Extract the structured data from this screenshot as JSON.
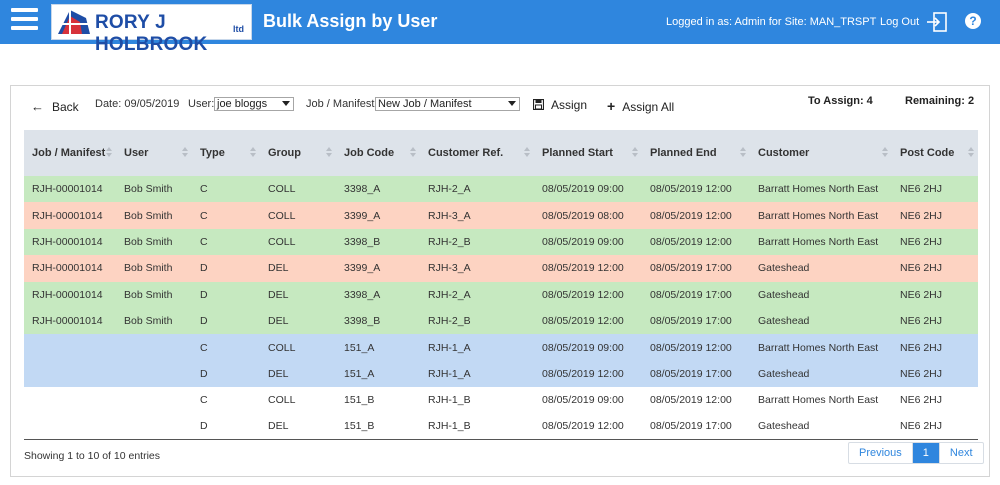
{
  "header": {
    "app_title": "Bulk Assign by User",
    "logo_text": "RORY J HOLBROOK",
    "logo_suffix": "ltd",
    "logged_in": "Logged in as: Admin for Site: MAN_TRSPT",
    "logout_label": "Log Out",
    "help_label": "?"
  },
  "toolbar": {
    "back_label": "Back",
    "date_label": "Date: 09/05/2019",
    "user_label": "User:",
    "user_value": "joe bloggs",
    "job_label": "Job / Manifest:",
    "job_value": "New Job / Manifest",
    "assign_label": "Assign",
    "assign_all_label": "Assign All",
    "to_assign": "To Assign: 4",
    "remaining": "Remaining: 2"
  },
  "table": {
    "columns": [
      "Job / Manifest",
      "User",
      "Type",
      "Group",
      "Job Code",
      "Customer Ref.",
      "Planned Start",
      "Planned End",
      "Customer",
      "Post Code"
    ],
    "rows": [
      {
        "color": "green",
        "cells": [
          "RJH-00001014",
          "Bob Smith",
          "C",
          "COLL",
          "3398_A",
          "RJH-2_A",
          "08/05/2019 09:00",
          "08/05/2019 12:00",
          "Barratt Homes North East",
          "NE6 2HJ"
        ]
      },
      {
        "color": "salmon",
        "cells": [
          "RJH-00001014",
          "Bob Smith",
          "C",
          "COLL",
          "3399_A",
          "RJH-3_A",
          "08/05/2019 08:00",
          "08/05/2019 12:00",
          "Barratt Homes North East",
          "NE6 2HJ"
        ]
      },
      {
        "color": "green",
        "cells": [
          "RJH-00001014",
          "Bob Smith",
          "C",
          "COLL",
          "3398_B",
          "RJH-2_B",
          "08/05/2019 09:00",
          "08/05/2019 12:00",
          "Barratt Homes North East",
          "NE6 2HJ"
        ]
      },
      {
        "color": "salmon",
        "cells": [
          "RJH-00001014",
          "Bob Smith",
          "D",
          "DEL",
          "3399_A",
          "RJH-3_A",
          "08/05/2019 12:00",
          "08/05/2019 17:00",
          "Gateshead",
          "NE6 2HJ"
        ]
      },
      {
        "color": "green",
        "cells": [
          "RJH-00001014",
          "Bob Smith",
          "D",
          "DEL",
          "3398_A",
          "RJH-2_A",
          "08/05/2019 12:00",
          "08/05/2019 17:00",
          "Gateshead",
          "NE6 2HJ"
        ]
      },
      {
        "color": "green",
        "cells": [
          "RJH-00001014",
          "Bob Smith",
          "D",
          "DEL",
          "3398_B",
          "RJH-2_B",
          "08/05/2019 12:00",
          "08/05/2019 17:00",
          "Gateshead",
          "NE6 2HJ"
        ]
      },
      {
        "color": "blue",
        "cells": [
          "",
          "",
          "C",
          "COLL",
          "151_A",
          "RJH-1_A",
          "08/05/2019 09:00",
          "08/05/2019 12:00",
          "Barratt Homes North East",
          "NE6 2HJ"
        ]
      },
      {
        "color": "blue",
        "cells": [
          "",
          "",
          "D",
          "DEL",
          "151_A",
          "RJH-1_A",
          "08/05/2019 12:00",
          "08/05/2019 17:00",
          "Gateshead",
          "NE6 2HJ"
        ]
      },
      {
        "color": "white",
        "cells": [
          "",
          "",
          "C",
          "COLL",
          "151_B",
          "RJH-1_B",
          "08/05/2019 09:00",
          "08/05/2019 12:00",
          "Barratt Homes North East",
          "NE6 2HJ"
        ]
      },
      {
        "color": "white",
        "cells": [
          "",
          "",
          "D",
          "DEL",
          "151_B",
          "RJH-1_B",
          "08/05/2019 12:00",
          "08/05/2019 17:00",
          "Gateshead",
          "NE6 2HJ"
        ]
      }
    ]
  },
  "footer": {
    "info": "Showing 1 to 10 of 10 entries",
    "prev_label": "Previous",
    "page_label": "1",
    "next_label": "Next"
  },
  "colors": {
    "header_bg": "#2f86de",
    "row_green": "#c6e9c0",
    "row_salmon": "#fdd3c2",
    "row_blue": "#c2d9f4",
    "table_head": "#dde3ea"
  },
  "icons": {
    "menu": "hamburger-icon",
    "back": "arrow-left-icon",
    "assign": "save-icon",
    "assign_all": "plus-icon",
    "logout": "logout-icon",
    "help": "help-icon"
  }
}
